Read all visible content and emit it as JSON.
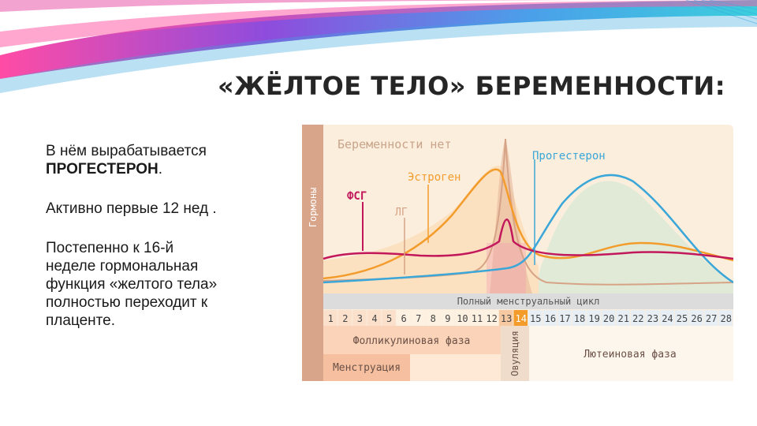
{
  "slide": {
    "title": "«ЖЁЛТОЕ ТЕЛО» БЕРЕМЕННОСТИ:",
    "paragraph1_line1": "В нём вырабатывается",
    "paragraph1_bold": "ПРОГЕСТЕРОН",
    "paragraph1_end": ".",
    "paragraph2": "Активно первые 12 нед .",
    "paragraph3_lines": [
      "Постепенно к 16-й",
      "неделе гормональная",
      "функция «желтого тела»",
      "полностью переходит к",
      "плаценте."
    ]
  },
  "figure": {
    "y_axis_label": "Гормоны",
    "header_label": "Беременности нет",
    "hormones": [
      {
        "label": "ФСГ",
        "color": "#c2185b"
      },
      {
        "label": "ЛГ",
        "color": "#d7a386"
      },
      {
        "label": "Эстроген",
        "color": "#f39c2b"
      },
      {
        "label": "Прогестерон",
        "color": "#3aa7d8"
      }
    ],
    "cycle_label": "Полный менструальный цикл",
    "days": [
      "1",
      "2",
      "3",
      "4",
      "5",
      "6",
      "7",
      "8",
      "9",
      "10",
      "11",
      "12",
      "13",
      "14",
      "15",
      "16",
      "17",
      "18",
      "19",
      "20",
      "21",
      "22",
      "23",
      "24",
      "25",
      "26",
      "27",
      "28"
    ],
    "phases": {
      "follicular": "Фолликулиновая фаза",
      "ovulation": "Овуляция",
      "luteal": "Лютеиновая фаза",
      "menstruation": "Менструация"
    },
    "colors": {
      "panel": "#fbeedd",
      "axis_strip": "#d9a58a",
      "day_bar": "#dcdcdc",
      "luteal": "#fdf6ec",
      "follicular": "#fbd3b8",
      "menstruation": "#f6c0a0"
    }
  }
}
